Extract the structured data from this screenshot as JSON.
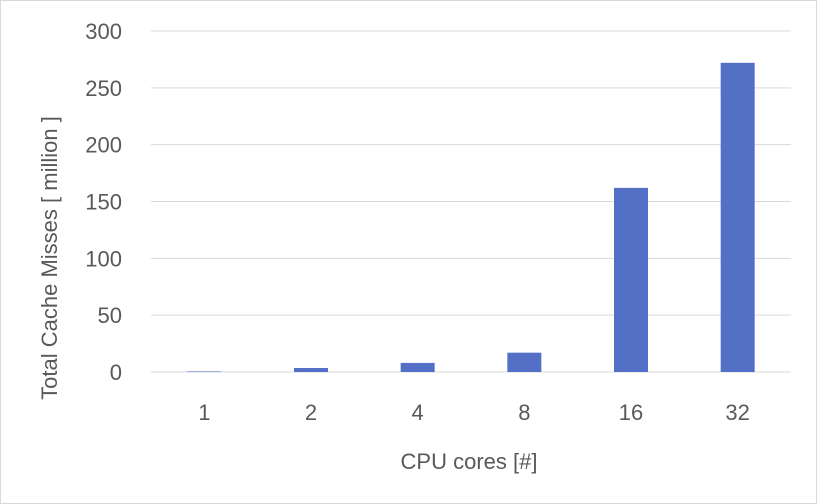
{
  "chart_data": {
    "type": "bar",
    "title": "",
    "xlabel": "CPU cores [#]",
    "ylabel": "Total Cache Misses [ million ]",
    "categories": [
      "1",
      "2",
      "4",
      "8",
      "16",
      "32"
    ],
    "series": [
      {
        "name": "Total Cache Misses",
        "values": [
          0.5,
          3.5,
          8,
          17,
          162,
          272
        ],
        "color": "#5470c6"
      }
    ],
    "ylim": [
      0,
      300
    ],
    "yticks": [
      0,
      50,
      100,
      150,
      200,
      250,
      300
    ],
    "grid": true,
    "legend": "none"
  }
}
